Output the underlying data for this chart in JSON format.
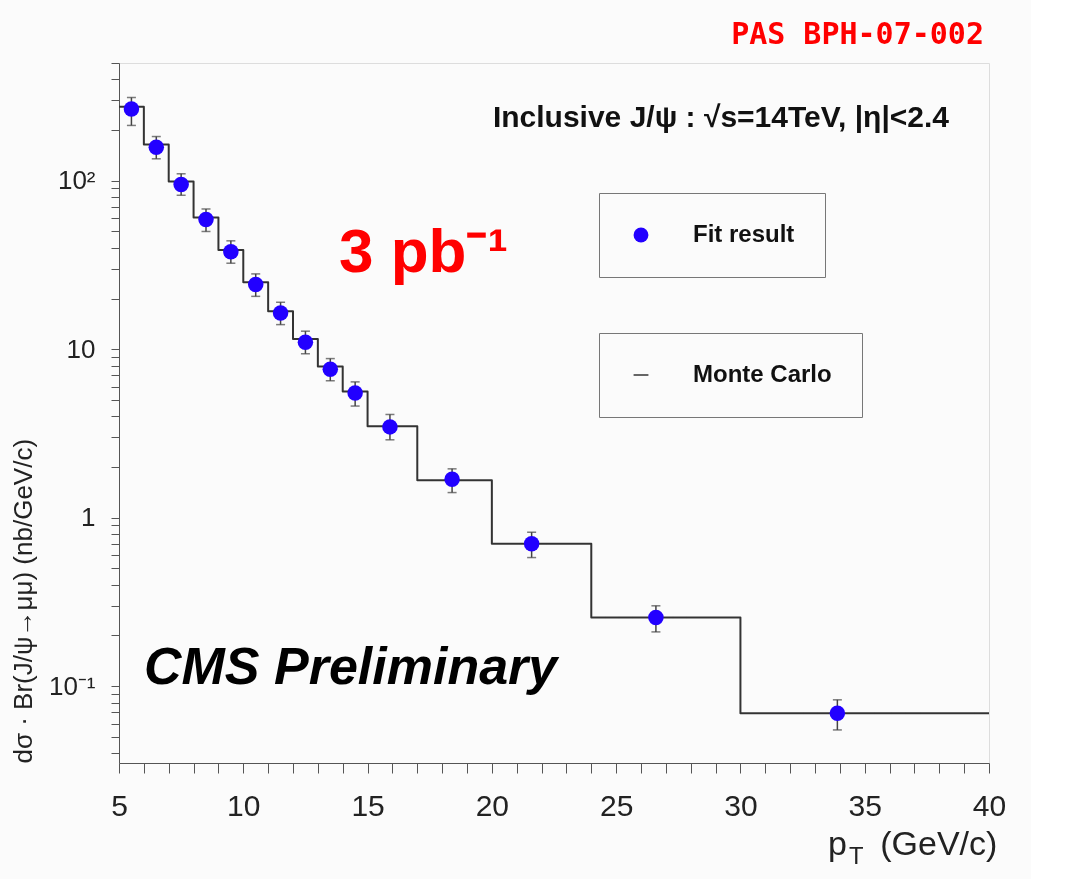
{
  "chart_data": {
    "type": "scatter",
    "xlabel": "p$_{T}$ (GeV/c)",
    "ylabel": "dσ · Br(J/ψ→μμ) (nb/GeV/c)",
    "annotations": [
      "PAS BPH-07-002",
      "Inclusive J/ψ : √s=14TeV, |η|<2.4",
      "3 pb⁻¹",
      "CMS Preliminary"
    ],
    "series": [
      {
        "name": "Fit result",
        "color": "#2200ff",
        "x": [
          5.5,
          6.5,
          7.5,
          8.5,
          9.5,
          10.5,
          11.5,
          12.5,
          13.5,
          14.5,
          15.9,
          18.4,
          21.6,
          26.6,
          33.9
        ],
        "values": [
          267,
          158,
          95,
          58.9,
          37.9,
          24.2,
          16.4,
          11.0,
          7.6,
          5.5,
          3.46,
          1.69,
          0.7,
          0.256,
          0.069
        ],
        "errors": [
          [
            213,
            312
          ],
          [
            135,
            183
          ],
          [
            82,
            110
          ],
          [
            50,
            68
          ],
          [
            32.4,
            44
          ],
          [
            20.6,
            28
          ],
          [
            14,
            19
          ],
          [
            9.4,
            12.8
          ],
          [
            6.5,
            8.8
          ],
          [
            4.6,
            6.4
          ],
          [
            2.9,
            4.1
          ],
          [
            1.41,
            1.95
          ],
          [
            0.58,
            0.82
          ],
          [
            0.21,
            0.3
          ],
          [
            0.055,
            0.083
          ]
        ]
      },
      {
        "name": "Monte Carlo",
        "type": "histogram",
        "color": "#333333",
        "bins": [
          5,
          6,
          7,
          8,
          9,
          10,
          11,
          12,
          13,
          14,
          15,
          17,
          20,
          24,
          30,
          40
        ],
        "values": [
          275,
          164,
          99,
          60.6,
          38.8,
          25,
          16.8,
          11.5,
          7.9,
          5.62,
          3.49,
          1.67,
          0.7,
          0.256,
          0.069
        ]
      }
    ],
    "log": "y",
    "xlim": [
      5,
      40
    ],
    "ylim": [
      0.035,
      500
    ],
    "xticks": [
      5,
      {
        "value": 6,
        "label": null
      },
      {
        "value": 7,
        "label": null
      },
      {
        "value": 8,
        "label": null
      },
      {
        "value": 9,
        "label": null
      },
      10,
      {
        "value": 11,
        "label": null
      },
      {
        "value": 12,
        "label": null
      },
      {
        "value": 13,
        "label": null
      },
      {
        "value": 14,
        "label": null
      },
      15,
      {
        "value": 16,
        "label": null
      },
      {
        "value": 17,
        "label": null
      },
      {
        "value": 18,
        "label": null
      },
      {
        "value": 19,
        "label": null
      },
      20,
      {
        "value": 21,
        "label": null
      },
      {
        "value": 22,
        "label": null
      },
      {
        "value": 23,
        "label": null
      },
      {
        "value": 24,
        "label": null
      },
      25,
      {
        "value": 26,
        "label": null
      },
      {
        "value": 27,
        "label": null
      },
      {
        "value": 28,
        "label": null
      },
      {
        "value": 29,
        "label": null
      },
      30,
      {
        "value": 31,
        "label": null
      },
      {
        "value": 32,
        "label": null
      },
      {
        "value": 33,
        "label": null
      },
      {
        "value": 34,
        "label": null
      },
      35,
      {
        "value": 36,
        "label": null
      },
      {
        "value": 37,
        "label": null
      },
      {
        "value": 38,
        "label": null
      },
      {
        "value": 39,
        "label": null
      },
      40
    ],
    "yticks": [
      {
        "value": 0.04,
        "label": null
      },
      {
        "value": 0.05,
        "label": null
      },
      {
        "value": 0.06,
        "label": null
      },
      {
        "value": 0.07,
        "label": null
      },
      {
        "value": 0.08,
        "label": null
      },
      {
        "value": 0.09,
        "label": null
      },
      {
        "value": 0.1,
        "label": "10⁻¹"
      },
      {
        "value": 0.2,
        "label": null
      },
      {
        "value": 0.3,
        "label": null
      },
      {
        "value": 0.4,
        "label": null
      },
      {
        "value": 0.5,
        "label": null
      },
      {
        "value": 0.6,
        "label": null
      },
      {
        "value": 0.7,
        "label": null
      },
      {
        "value": 0.8,
        "label": null
      },
      {
        "value": 0.9,
        "label": null
      },
      1,
      {
        "value": 2,
        "label": null
      },
      {
        "value": 3,
        "label": null
      },
      {
        "value": 4,
        "label": null
      },
      {
        "value": 5,
        "label": null
      },
      {
        "value": 6,
        "label": null
      },
      {
        "value": 7,
        "label": null
      },
      {
        "value": 8,
        "label": null
      },
      {
        "value": 9,
        "label": null
      },
      10,
      {
        "value": 20,
        "label": null
      },
      {
        "value": 30,
        "label": null
      },
      {
        "value": 40,
        "label": null
      },
      {
        "value": 50,
        "label": null
      },
      {
        "value": 60,
        "label": null
      },
      {
        "value": 70,
        "label": null
      },
      {
        "value": 80,
        "label": null
      },
      {
        "value": 90,
        "label": null
      },
      {
        "value": 100,
        "label": "10²"
      },
      {
        "value": 200,
        "label": null
      },
      {
        "value": 300,
        "label": null
      },
      {
        "value": 400,
        "label": null
      },
      {
        "value": 500,
        "label": null
      }
    ],
    "grid": false,
    "legend": "top right",
    "marker": "circle"
  }
}
